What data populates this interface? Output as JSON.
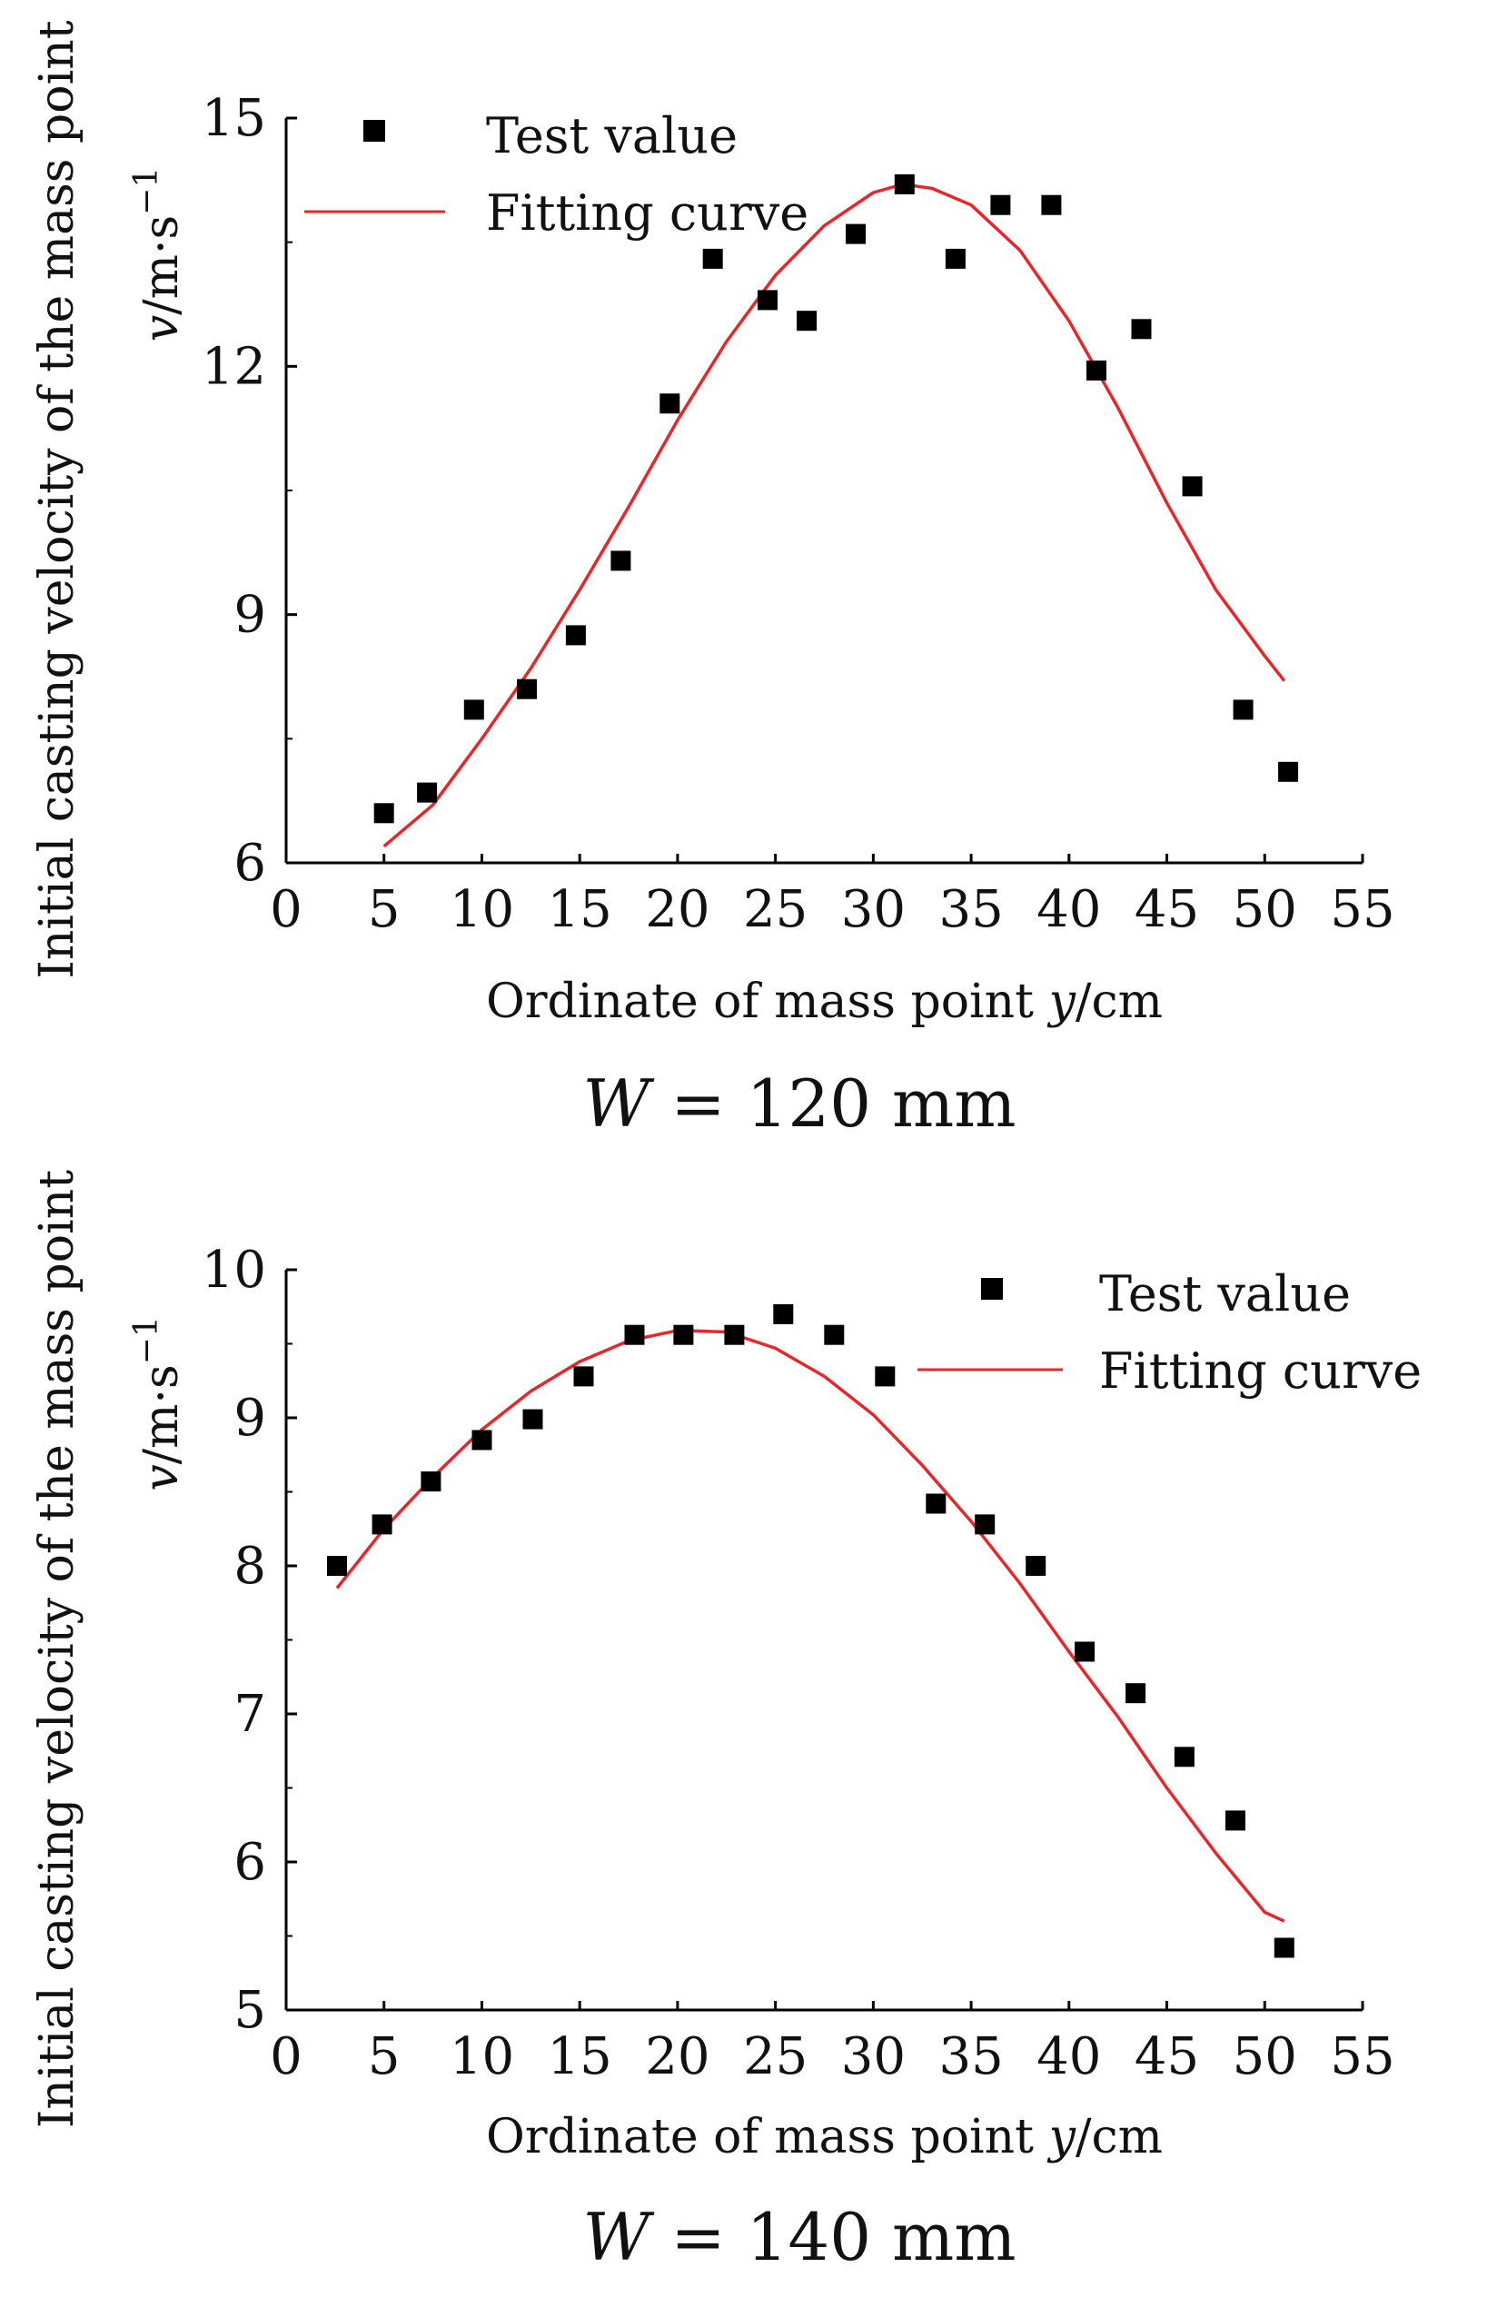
{
  "chart_data": [
    {
      "type": "scatter",
      "caption": {
        "var": "W",
        "eq": " = ",
        "value": "120 mm"
      },
      "ylabel_main": "Initial casting velocity of the mass point",
      "ylabel_var": "v",
      "ylabel_unit": "/m·s",
      "ylabel_exp": "−1",
      "xlabel_text": "Ordinate of mass point  ",
      "xlabel_var": "y",
      "xlabel_unit": "/cm",
      "xlim": [
        0,
        55
      ],
      "ylim": [
        6,
        15
      ],
      "xticks": [
        0,
        5,
        10,
        15,
        20,
        25,
        30,
        35,
        40,
        45,
        50,
        55
      ],
      "yticks": [
        6,
        9,
        12,
        15
      ],
      "yminor": [
        7.5,
        10.5,
        13.5
      ],
      "legend": {
        "position": "top-left",
        "test_label": "Test value",
        "fit_label": "Fitting curve"
      },
      "series": [
        {
          "name": "Test value",
          "kind": "points",
          "x": [
            5,
            7.2,
            9.6,
            12.3,
            14.8,
            17.1,
            19.6,
            21.8,
            24.6,
            26.6,
            29.1,
            31.6,
            34.2,
            36.5,
            39.1,
            41.4,
            43.7,
            46.3,
            48.9,
            51.2
          ],
          "y": [
            6.6,
            6.85,
            7.85,
            8.1,
            8.75,
            9.65,
            11.55,
            13.3,
            12.8,
            12.55,
            13.6,
            14.2,
            13.3,
            13.95,
            13.95,
            11.95,
            12.45,
            10.55,
            7.85,
            7.1
          ]
        },
        {
          "name": "Fitting curve",
          "kind": "line",
          "color": "#e8262a",
          "x": [
            5,
            7.5,
            10,
            12.5,
            15,
            17.5,
            20,
            22.5,
            25,
            27.5,
            30,
            31.5,
            33,
            35,
            37.5,
            40,
            42.5,
            45,
            47.5,
            50,
            51
          ],
          "y": [
            6.2,
            6.7,
            7.5,
            8.35,
            9.3,
            10.3,
            11.35,
            12.3,
            13.1,
            13.7,
            14.1,
            14.2,
            14.15,
            13.95,
            13.4,
            12.55,
            11.5,
            10.35,
            9.3,
            8.5,
            8.2
          ]
        }
      ]
    },
    {
      "type": "scatter",
      "caption": {
        "var": "W",
        "eq": " = ",
        "value": "140 mm"
      },
      "ylabel_main": "Initial casting velocity of the mass point",
      "ylabel_var": "v",
      "ylabel_unit": "/m·s",
      "ylabel_exp": "−1",
      "xlabel_text": "Ordinate of mass point ",
      "xlabel_var": "y",
      "xlabel_unit": "/cm",
      "xlim": [
        0,
        55
      ],
      "ylim": [
        5,
        10
      ],
      "xticks": [
        0,
        5,
        10,
        15,
        20,
        25,
        30,
        35,
        40,
        45,
        50,
        55
      ],
      "yticks": [
        5,
        6,
        7,
        8,
        9,
        10
      ],
      "yminor": [
        5.5,
        6.5,
        7.5,
        8.5,
        9.5
      ],
      "legend": {
        "position": "top-right",
        "test_label": "Test value",
        "fit_label": "Fitting curve"
      },
      "series": [
        {
          "name": "Test value",
          "kind": "points",
          "x": [
            2.6,
            4.9,
            7.4,
            10,
            12.6,
            15.2,
            17.8,
            20.3,
            22.9,
            25.4,
            28,
            30.6,
            33.2,
            35.7,
            38.3,
            40.8,
            43.4,
            45.9,
            48.5,
            51
          ],
          "y": [
            8,
            8.28,
            8.57,
            8.85,
            8.99,
            9.28,
            9.56,
            9.56,
            9.56,
            9.7,
            9.56,
            9.28,
            8.42,
            8.28,
            8,
            7.42,
            7.14,
            6.71,
            6.28,
            5.42
          ]
        },
        {
          "name": "Fitting curve",
          "kind": "line",
          "color": "#e8262a",
          "x": [
            2.6,
            5,
            7.5,
            10,
            12.5,
            15,
            17.5,
            20,
            22.5,
            25,
            27.5,
            30,
            32.5,
            35,
            37.5,
            40,
            42.5,
            45,
            47.5,
            50,
            51
          ],
          "y": [
            7.85,
            8.25,
            8.6,
            8.92,
            9.18,
            9.38,
            9.52,
            9.59,
            9.58,
            9.47,
            9.28,
            9.02,
            8.68,
            8.3,
            7.88,
            7.42,
            6.98,
            6.5,
            6.06,
            5.66,
            5.6
          ]
        }
      ]
    }
  ]
}
